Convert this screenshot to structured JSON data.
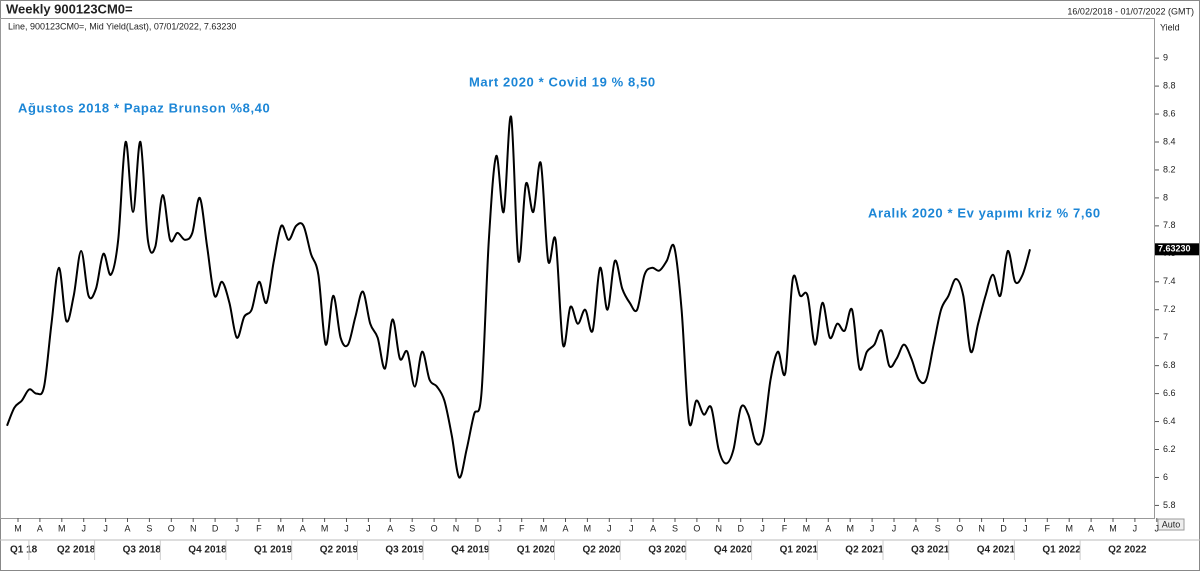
{
  "chart_data": {
    "type": "line",
    "title": "Weekly 900123CM0=",
    "date_range": "16/02/2018 - 01/07/2022 (GMT)",
    "legend_text": "Line, 900123CM0=, Mid Yield(Last), 07/01/2022, 7.63230",
    "y_axis_label": "Yield",
    "scale_mode": "Auto",
    "color": "#000000",
    "values": [
      6.37,
      6.5,
      6.55,
      6.63,
      6.6,
      6.65,
      7.1,
      7.5,
      7.12,
      7.3,
      7.62,
      7.3,
      7.35,
      7.6,
      7.45,
      7.7,
      8.4,
      7.9,
      8.4,
      7.7,
      7.65,
      8.02,
      7.7,
      7.75,
      7.7,
      7.75,
      8.0,
      7.65,
      7.3,
      7.4,
      7.25,
      7.0,
      7.15,
      7.2,
      7.4,
      7.25,
      7.55,
      7.8,
      7.7,
      7.8,
      7.8,
      7.6,
      7.45,
      6.95,
      7.3,
      7.0,
      6.95,
      7.15,
      7.33,
      7.1,
      7.0,
      6.78,
      7.13,
      6.85,
      6.9,
      6.65,
      6.9,
      6.7,
      6.65,
      6.55,
      6.3,
      6.0,
      6.2,
      6.45,
      6.6,
      7.7,
      8.3,
      7.9,
      8.58,
      7.55,
      8.1,
      7.9,
      8.25,
      7.55,
      7.7,
      6.95,
      7.22,
      7.1,
      7.2,
      7.05,
      7.5,
      7.2,
      7.55,
      7.35,
      7.25,
      7.2,
      7.45,
      7.5,
      7.48,
      7.55,
      7.65,
      7.2,
      6.4,
      6.55,
      6.45,
      6.5,
      6.2,
      6.1,
      6.2,
      6.5,
      6.45,
      6.25,
      6.3,
      6.7,
      6.9,
      6.75,
      7.42,
      7.3,
      7.3,
      6.95,
      7.25,
      7.0,
      7.1,
      7.05,
      7.2,
      6.78,
      6.9,
      6.95,
      7.05,
      6.8,
      6.85,
      6.95,
      6.85,
      6.7,
      6.7,
      6.95,
      7.2,
      7.3,
      7.42,
      7.3,
      6.9,
      7.1,
      7.3,
      7.45,
      7.3,
      7.62,
      7.4,
      7.45,
      7.6323
    ],
    "last_label": {
      "value": 7.6323,
      "label": "7.63230"
    },
    "ylim": [
      5.71,
      9.28
    ],
    "yticks": [
      5.8,
      6,
      6.2,
      6.4,
      6.6,
      6.8,
      7,
      7.2,
      7.4,
      7.6,
      7.8,
      8,
      8.2,
      8.4,
      8.6,
      8.8,
      9
    ],
    "month_ticks": [
      "M",
      "A",
      "M",
      "J",
      "J",
      "A",
      "S",
      "O",
      "N",
      "D",
      "J",
      "F",
      "M",
      "A",
      "M",
      "J",
      "J",
      "A",
      "S",
      "O",
      "N",
      "D",
      "J",
      "F",
      "M",
      "A",
      "M",
      "J",
      "J",
      "A",
      "S",
      "O",
      "N",
      "D",
      "J",
      "F",
      "M",
      "A",
      "M",
      "J",
      "J",
      "A",
      "S",
      "O",
      "N",
      "D",
      "J",
      "F",
      "M",
      "A",
      "M",
      "J",
      "J"
    ],
    "quarter_ticks": [
      "Q1 18",
      "Q2 2018",
      "Q3 2018",
      "Q4 2018",
      "Q1 2019",
      "Q2 2019",
      "Q3 2019",
      "Q4 2019",
      "Q1 2020",
      "Q2 2020",
      "Q3 2020",
      "Q4 2020",
      "Q1 2021",
      "Q2 2021",
      "Q3 2021",
      "Q4 2021",
      "Q1 2022",
      "Q2 2022"
    ],
    "annotations": [
      "Ağustos 2018 * Papaz Brunson %8,40",
      "Mart 2020 * Covid 19 % 8,50",
      "Aralık 2020 * Ev yapımı kriz % 7,60"
    ]
  }
}
